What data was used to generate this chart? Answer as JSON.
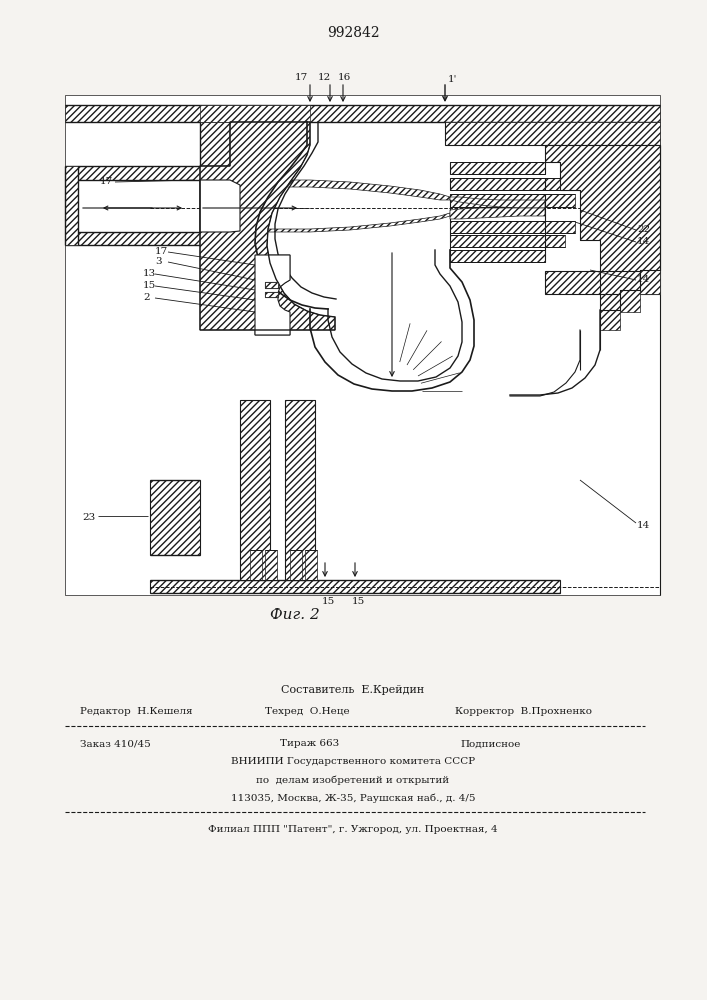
{
  "patent_number": "992842",
  "figure_label": "Фиг. 2",
  "bg_color": "#f5f3f0",
  "line_color": "#1a1a1a",
  "footer": {
    "line1": "Составитель  Е.Крейдин",
    "line2_l": "Редактор  Н.Кешеля",
    "line2_m": "Техред  О.Неце",
    "line2_r": "Корректор  В.Прохненко",
    "line3_l": "Заказ 410/45",
    "line3_m": "Тираж 663",
    "line3_r": "Подписное",
    "line4": "ВНИИПИ Государственного комитета СССР",
    "line5": "по  делам изобретений и открытий",
    "line6": "113035, Москва, Ж-35, Раушская наб., д. 4/5",
    "line7": "Филиал ППП \"Патент\", г. Ужгород, ул. Проектная, 4"
  }
}
